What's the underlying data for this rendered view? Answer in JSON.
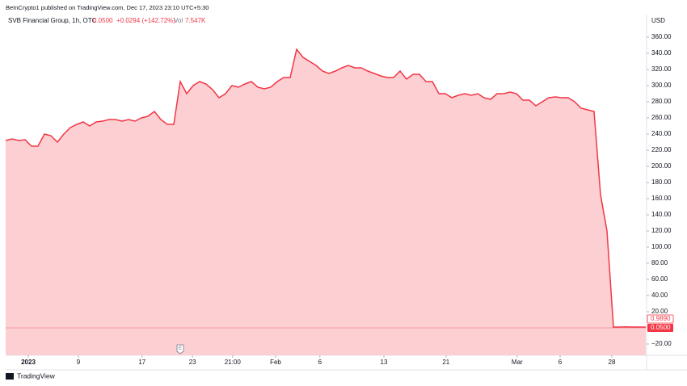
{
  "chart_data": {
    "type": "area",
    "published": "BeInCrypto1 published on TradingView.com, Dec 17, 2023 23:10 UTC+5:30",
    "title": "SVB Financial Group, 1h, OTC",
    "price": "0.0500",
    "change": "+0.0294 (+142.72%)",
    "volume_label": "Vol",
    "volume": "7.547K",
    "currency": "USD",
    "brand": "TradingView",
    "annotation": "E",
    "color": "#f23645",
    "fill": "#fccfd3",
    "grid": false,
    "series": [
      {
        "name": "SVB Financial Group",
        "color": "#f23645",
        "x": [
          0,
          1,
          2,
          3,
          4,
          5,
          6,
          7,
          8,
          9,
          10,
          11,
          12,
          13,
          14,
          15,
          16,
          17,
          18,
          19,
          20,
          21,
          22,
          23,
          24,
          25,
          26,
          27,
          28,
          29,
          30,
          31,
          32,
          33,
          34,
          35,
          36,
          37,
          38,
          39,
          40,
          41,
          42,
          43,
          44,
          45,
          46,
          47,
          48,
          49,
          50,
          51,
          52,
          53,
          54,
          55,
          56,
          57,
          58,
          59,
          60,
          61,
          62,
          63,
          64,
          65,
          66,
          67,
          68,
          69,
          70,
          71,
          72,
          73,
          74,
          75,
          76,
          77,
          78,
          79,
          80,
          81,
          82,
          83,
          84,
          85,
          86,
          87,
          88,
          89,
          90,
          91,
          92,
          93,
          94,
          95,
          96,
          97,
          98,
          99
        ],
        "values": [
          232,
          234,
          232,
          233,
          225,
          225,
          240,
          238,
          230,
          240,
          248,
          252,
          255,
          250,
          255,
          256,
          258,
          258,
          256,
          258,
          256,
          260,
          262,
          268,
          258,
          252,
          252,
          305,
          290,
          300,
          305,
          302,
          295,
          285,
          290,
          300,
          298,
          302,
          305,
          298,
          296,
          298,
          305,
          310,
          310,
          345,
          335,
          330,
          325,
          318,
          315,
          318,
          322,
          325,
          322,
          322,
          318,
          315,
          312,
          310,
          310,
          318,
          308,
          314,
          314,
          305,
          305,
          290,
          290,
          285,
          288,
          290,
          288,
          290,
          285,
          283,
          290,
          290,
          292,
          290,
          282,
          282,
          275,
          280,
          285,
          286,
          285,
          285,
          280,
          272,
          270,
          268,
          165,
          120,
          1,
          1,
          1.2,
          1,
          1,
          1
        ]
      }
    ],
    "xlim": [
      0,
      99
    ],
    "xticks": [
      {
        "value": 3.5,
        "label": "2023"
      },
      {
        "value": 11.25,
        "label": "9"
      },
      {
        "value": 21.1,
        "label": "17"
      },
      {
        "value": 28.9,
        "label": "23"
      },
      {
        "value": 35.1,
        "label": "21:00"
      },
      {
        "value": 41.75,
        "label": "Feb"
      },
      {
        "value": 48.6,
        "label": "6"
      },
      {
        "value": 58.5,
        "label": "13"
      },
      {
        "value": 68.1,
        "label": "21"
      },
      {
        "value": 79.1,
        "label": "Mar"
      },
      {
        "value": 85.75,
        "label": "6"
      },
      {
        "value": 93.75,
        "label": "28"
      }
    ],
    "annotation_x": 27,
    "ylim": [
      -34,
      388
    ],
    "yticks": [
      {
        "value": -20,
        "label": "−20.00"
      },
      {
        "value": 20,
        "label": "20.00"
      },
      {
        "value": 40,
        "label": "40.00"
      },
      {
        "value": 60,
        "label": "60.00"
      },
      {
        "value": 80,
        "label": "80.00"
      },
      {
        "value": 100,
        "label": "100.00"
      },
      {
        "value": 120,
        "label": "120.00"
      },
      {
        "value": 140,
        "label": "140.00"
      },
      {
        "value": 160,
        "label": "160.00"
      },
      {
        "value": 180,
        "label": "180.00"
      },
      {
        "value": 200,
        "label": "200.00"
      },
      {
        "value": 220,
        "label": "220.00"
      },
      {
        "value": 240,
        "label": "240.00"
      },
      {
        "value": 260,
        "label": "260.00"
      },
      {
        "value": 280,
        "label": "280.00"
      },
      {
        "value": 300,
        "label": "300.00"
      },
      {
        "value": 320,
        "label": "320.00"
      },
      {
        "value": 340,
        "label": "340.00"
      },
      {
        "value": 360,
        "label": "360.00"
      }
    ],
    "prev_close": {
      "value": 0.989,
      "label": "0.9890"
    },
    "last_price": {
      "value": 0.05,
      "label": "0.0500"
    }
  }
}
